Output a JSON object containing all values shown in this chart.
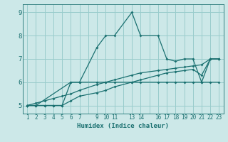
{
  "xlabel": "Humidex (Indice chaleur)",
  "background_color": "#cce8e8",
  "grid_color": "#99cccc",
  "line_color": "#1a7070",
  "line1_x": [
    1,
    2,
    3,
    4,
    5,
    6,
    7,
    9,
    10,
    11,
    13,
    14,
    16,
    17,
    18,
    19,
    20,
    21,
    22,
    23
  ],
  "line1_y": [
    5.0,
    5.0,
    5.0,
    5.0,
    5.0,
    6.0,
    6.0,
    7.5,
    8.0,
    8.0,
    9.0,
    8.0,
    8.0,
    7.0,
    6.9,
    7.0,
    7.0,
    6.0,
    7.0,
    7.0
  ],
  "line2_x": [
    1,
    2,
    6,
    7,
    9,
    10,
    11,
    13,
    14,
    16,
    17,
    18,
    19,
    20,
    21,
    22,
    23
  ],
  "line2_y": [
    5.0,
    5.0,
    6.0,
    6.0,
    6.0,
    6.0,
    6.0,
    6.0,
    6.0,
    6.0,
    6.0,
    6.0,
    6.0,
    6.0,
    6.0,
    6.0,
    6.0
  ],
  "line3_x": [
    1,
    2,
    3,
    4,
    5,
    6,
    7,
    9,
    10,
    11,
    13,
    14,
    16,
    17,
    18,
    19,
    20,
    21,
    22,
    23
  ],
  "line3_y": [
    5.0,
    5.1,
    5.2,
    5.3,
    5.4,
    5.5,
    5.65,
    5.9,
    6.0,
    6.1,
    6.3,
    6.4,
    6.5,
    6.55,
    6.6,
    6.65,
    6.7,
    6.75,
    7.0,
    7.0
  ],
  "line4_x": [
    1,
    2,
    3,
    4,
    5,
    6,
    7,
    9,
    10,
    11,
    13,
    14,
    16,
    17,
    18,
    19,
    20,
    21,
    22,
    23
  ],
  "line4_y": [
    5.0,
    5.0,
    5.0,
    5.0,
    5.0,
    5.2,
    5.4,
    5.55,
    5.65,
    5.8,
    6.0,
    6.1,
    6.3,
    6.4,
    6.45,
    6.5,
    6.55,
    6.3,
    7.0,
    7.0
  ],
  "ylim": [
    4.65,
    9.35
  ],
  "xlim": [
    0.5,
    23.5
  ],
  "yticks": [
    5,
    6,
    7,
    8,
    9
  ],
  "xticks": [
    1,
    2,
    3,
    4,
    5,
    6,
    7,
    9,
    10,
    11,
    13,
    14,
    16,
    17,
    18,
    19,
    20,
    21,
    22,
    23
  ],
  "xtick_labels": [
    "1",
    "2",
    "3",
    "4",
    "5",
    "6",
    "7",
    "9",
    "10",
    "11",
    "13",
    "14",
    "16",
    "17",
    "18",
    "19",
    "20",
    "21",
    "22",
    "23"
  ]
}
